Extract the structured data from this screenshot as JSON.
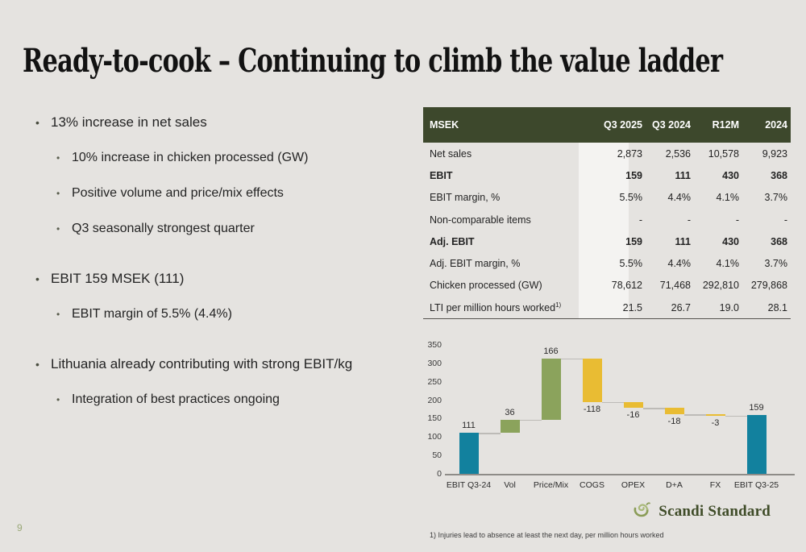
{
  "page": {
    "number": "9",
    "background": "#e5e3e0"
  },
  "title": "Ready-to-cook – Continuing to climb the value ladder",
  "bullets": [
    {
      "text": "13% increase in net sales",
      "level": 1,
      "new_group": false
    },
    {
      "text": "10% increase in chicken processed (GW)",
      "level": 2,
      "new_group": false
    },
    {
      "text": "Positive volume and price/mix effects",
      "level": 2,
      "new_group": false
    },
    {
      "text": "Q3 seasonally strongest quarter",
      "level": 2,
      "new_group": false
    },
    {
      "text": "EBIT 159 MSEK (111)",
      "level": 1,
      "new_group": true
    },
    {
      "text": "EBIT margin of 5.5% (4.4%)",
      "level": 2,
      "new_group": false
    },
    {
      "text": "Lithuania already contributing with strong EBIT/kg",
      "level": 1,
      "new_group": true
    },
    {
      "text": "Integration of best practices ongoing",
      "level": 2,
      "new_group": false
    }
  ],
  "table": {
    "header": [
      "MSEK",
      "Q3 2025",
      "Q3 2024",
      "R12M",
      "2024"
    ],
    "header_bg": "#3d482c",
    "highlight_col_bg": "#f4f3f1",
    "rows": [
      {
        "label": "Net sales",
        "sup": "",
        "bold": false,
        "values": [
          "2,873",
          "2,536",
          "10,578",
          "9,923"
        ]
      },
      {
        "label": "EBIT",
        "sup": "",
        "bold": true,
        "values": [
          "159",
          "111",
          "430",
          "368"
        ]
      },
      {
        "label": "EBIT margin, %",
        "sup": "",
        "bold": false,
        "values": [
          "5.5%",
          "4.4%",
          "4.1%",
          "3.7%"
        ]
      },
      {
        "label": "Non-comparable items",
        "sup": "",
        "bold": false,
        "values": [
          "-",
          "-",
          "-",
          "-"
        ]
      },
      {
        "label": "Adj. EBIT",
        "sup": "",
        "bold": true,
        "values": [
          "159",
          "111",
          "430",
          "368"
        ]
      },
      {
        "label": "Adj. EBIT margin, %",
        "sup": "",
        "bold": false,
        "values": [
          "5.5%",
          "4.4%",
          "4.1%",
          "3.7%"
        ]
      },
      {
        "label": "Chicken processed (GW)",
        "sup": "",
        "bold": false,
        "values": [
          "78,612",
          "71,468",
          "292,810",
          "279,868"
        ]
      },
      {
        "label": "LTI per million hours worked",
        "sup": "1)",
        "bold": false,
        "values": [
          "21.5",
          "26.7",
          "19.0",
          "28.1"
        ]
      }
    ]
  },
  "chart_data": {
    "type": "bar",
    "subtype": "waterfall",
    "title": "",
    "xlabel": "",
    "ylabel": "",
    "categories": [
      "EBIT Q3-24",
      "Vol",
      "Price/Mix",
      "COGS",
      "OPEX",
      "D+A",
      "FX",
      "EBIT Q3-25"
    ],
    "values": [
      111,
      36,
      166,
      -118,
      -16,
      -18,
      -3,
      159
    ],
    "bar_types": [
      "absolute",
      "delta",
      "delta",
      "delta",
      "delta",
      "delta",
      "delta",
      "absolute"
    ],
    "data_labels": [
      "111",
      "36",
      "166",
      "-118",
      "-16",
      "-18",
      "-3",
      "159"
    ],
    "ylim": [
      0,
      350
    ],
    "yticks": [
      0,
      50,
      100,
      150,
      200,
      250,
      300,
      350
    ],
    "grid": false,
    "legend": "none",
    "colors": {
      "absolute": "#12819e",
      "positive": "#8ba35c",
      "negative": "#e9bc33"
    }
  },
  "logo": {
    "text": "Scandi Standard",
    "color": "#3f4c28",
    "icon": "scandi-bird-swirl"
  },
  "footnote": "1) Injuries lead to absence at least the next day, per million hours worked"
}
